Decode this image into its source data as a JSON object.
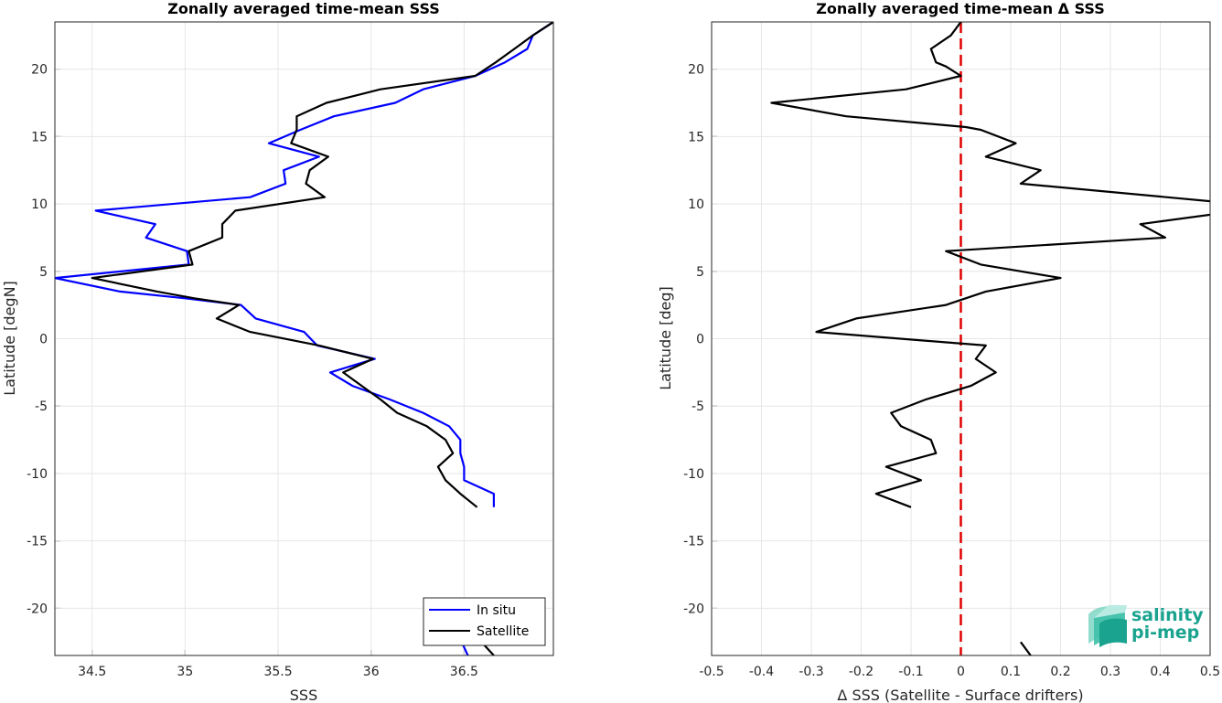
{
  "chart_data": [
    {
      "type": "line",
      "title": "Zonally averaged time-mean SSS",
      "xlabel": "SSS",
      "ylabel": "Latitude [degN]",
      "xlim": [
        34.3,
        36.98
      ],
      "ylim": [
        -23.5,
        23.5
      ],
      "xticks": [
        "34.5",
        "35",
        "35.5",
        "36",
        "36.5"
      ],
      "xtick_values": [
        34.5,
        35,
        35.5,
        36,
        36.5
      ],
      "yticks": [
        "-20",
        "-15",
        "-10",
        "-5",
        "0",
        "5",
        "10",
        "15",
        "20"
      ],
      "ytick_values": [
        -20,
        -15,
        -10,
        -5,
        0,
        5,
        10,
        15,
        20
      ],
      "grid": true,
      "legend_position": "bottom-right",
      "series": [
        {
          "name": "In situ",
          "color": "#0000ff",
          "points": [
            [
              36.98,
              23.5
            ],
            [
              36.87,
              22.5
            ],
            [
              36.84,
              21.5
            ],
            [
              36.72,
              20.5
            ],
            [
              36.56,
              19.5
            ],
            [
              36.28,
              18.5
            ],
            [
              36.13,
              17.5
            ],
            [
              35.8,
              16.5
            ],
            [
              35.62,
              15.5
            ],
            [
              35.45,
              14.5
            ],
            [
              35.72,
              13.5
            ],
            [
              35.53,
              12.5
            ],
            [
              35.54,
              11.5
            ],
            [
              35.35,
              10.5
            ],
            [
              34.52,
              9.5
            ],
            [
              34.84,
              8.5
            ],
            [
              34.79,
              7.5
            ],
            [
              35.01,
              6.5
            ],
            [
              35.02,
              5.5
            ],
            [
              34.3,
              4.5
            ],
            [
              34.65,
              3.5
            ],
            [
              35.0,
              3.0
            ],
            [
              35.3,
              2.5
            ],
            [
              35.38,
              1.5
            ],
            [
              35.64,
              0.5
            ],
            [
              35.71,
              -0.5
            ],
            [
              36.02,
              -1.5
            ],
            [
              35.78,
              -2.5
            ],
            [
              35.9,
              -3.5
            ],
            [
              36.1,
              -4.5
            ],
            [
              36.28,
              -5.5
            ],
            [
              36.42,
              -6.5
            ],
            [
              36.48,
              -7.5
            ],
            [
              36.48,
              -8.5
            ],
            [
              36.5,
              -9.5
            ],
            [
              36.5,
              -10.5
            ],
            [
              36.66,
              -11.5
            ],
            [
              36.66,
              -12.5
            ]
          ]
        },
        {
          "name": "Satellite",
          "color": "#000000",
          "points": [
            [
              36.98,
              23.5
            ],
            [
              36.87,
              22.5
            ],
            [
              36.77,
              21.5
            ],
            [
              36.67,
              20.5
            ],
            [
              36.56,
              19.5
            ],
            [
              36.05,
              18.5
            ],
            [
              35.76,
              17.5
            ],
            [
              35.6,
              16.5
            ],
            [
              35.6,
              15.5
            ],
            [
              35.57,
              14.5
            ],
            [
              35.77,
              13.5
            ],
            [
              35.67,
              12.5
            ],
            [
              35.65,
              11.5
            ],
            [
              35.75,
              10.5
            ],
            [
              35.27,
              9.5
            ],
            [
              35.2,
              8.5
            ],
            [
              35.2,
              7.5
            ],
            [
              35.02,
              6.5
            ],
            [
              35.04,
              5.5
            ],
            [
              34.5,
              4.5
            ],
            [
              34.85,
              3.5
            ],
            [
              35.05,
              3.0
            ],
            [
              35.29,
              2.5
            ],
            [
              35.17,
              1.5
            ],
            [
              35.35,
              0.5
            ],
            [
              35.72,
              -0.5
            ],
            [
              36.01,
              -1.5
            ],
            [
              35.85,
              -2.5
            ],
            [
              35.95,
              -3.5
            ],
            [
              36.05,
              -4.5
            ],
            [
              36.14,
              -5.5
            ],
            [
              36.3,
              -6.5
            ],
            [
              36.4,
              -7.5
            ],
            [
              36.44,
              -8.5
            ],
            [
              36.36,
              -9.5
            ],
            [
              36.4,
              -10.5
            ],
            [
              36.48,
              -11.5
            ],
            [
              36.57,
              -12.5
            ]
          ]
        },
        {
          "name": "",
          "color": "#0000ff",
          "points": [
            [
              36.49,
              -22.6
            ],
            [
              36.52,
              -23.5
            ]
          ]
        },
        {
          "name": "",
          "color": "#000000",
          "points": [
            [
              36.6,
              -22.6
            ],
            [
              36.66,
              -23.5
            ]
          ]
        }
      ]
    },
    {
      "type": "line",
      "title": "Zonally averaged time-mean Δ SSS",
      "xlabel": "Δ SSS (Satellite - Surface drifters)",
      "ylabel": "Latitude [deg]",
      "xlim": [
        -0.5,
        0.5
      ],
      "ylim": [
        -23.5,
        23.5
      ],
      "xticks": [
        "-0.5",
        "-0.4",
        "-0.3",
        "-0.2",
        "-0.1",
        "0",
        "0.1",
        "0.2",
        "0.3",
        "0.4",
        "0.5"
      ],
      "xtick_values": [
        -0.5,
        -0.4,
        -0.3,
        -0.2,
        -0.1,
        0,
        0.1,
        0.2,
        0.3,
        0.4,
        0.5
      ],
      "yticks": [
        "-20",
        "-15",
        "-10",
        "-5",
        "0",
        "5",
        "10",
        "15",
        "20"
      ],
      "ytick_values": [
        -20,
        -15,
        -10,
        -5,
        0,
        5,
        10,
        15,
        20
      ],
      "grid": true,
      "reference_line": {
        "x": 0,
        "color": "#e00000",
        "style": "dashed"
      },
      "series": [
        {
          "color": "#000000",
          "points": [
            [
              0.0,
              23.5
            ],
            [
              -0.02,
              22.5
            ],
            [
              -0.06,
              21.5
            ],
            [
              -0.05,
              20.5
            ],
            [
              -0.03,
              20.2
            ],
            [
              -0.0,
              19.5
            ],
            [
              -0.11,
              18.5
            ],
            [
              -0.38,
              17.5
            ],
            [
              -0.23,
              16.5
            ],
            [
              0.01,
              15.7
            ],
            [
              0.04,
              15.5
            ],
            [
              0.11,
              14.5
            ],
            [
              0.05,
              13.5
            ],
            [
              0.16,
              12.5
            ],
            [
              0.12,
              11.5
            ],
            [
              0.5,
              10.2
            ],
            [
              0.55,
              10.0
            ],
            [
              0.56,
              9.5
            ],
            [
              0.36,
              8.5
            ],
            [
              0.41,
              7.5
            ],
            [
              -0.03,
              6.5
            ],
            [
              0.04,
              5.5
            ],
            [
              0.2,
              4.5
            ],
            [
              0.05,
              3.5
            ],
            [
              -0.03,
              2.5
            ],
            [
              -0.21,
              1.5
            ],
            [
              -0.29,
              0.5
            ],
            [
              -0.02,
              -0.3
            ],
            [
              0.05,
              -0.5
            ],
            [
              0.03,
              -1.5
            ],
            [
              0.07,
              -2.5
            ],
            [
              0.02,
              -3.5
            ],
            [
              -0.07,
              -4.5
            ],
            [
              -0.14,
              -5.5
            ],
            [
              -0.12,
              -6.5
            ],
            [
              -0.06,
              -7.5
            ],
            [
              -0.05,
              -8.5
            ],
            [
              -0.15,
              -9.5
            ],
            [
              -0.08,
              -10.5
            ],
            [
              -0.17,
              -11.5
            ],
            [
              -0.1,
              -12.5
            ]
          ]
        },
        {
          "color": "#000000",
          "points": [
            [
              0.12,
              -22.5
            ],
            [
              0.14,
              -23.5
            ]
          ]
        }
      ]
    }
  ],
  "logo": {
    "line1": "salinity",
    "line2": "pi-mep"
  }
}
